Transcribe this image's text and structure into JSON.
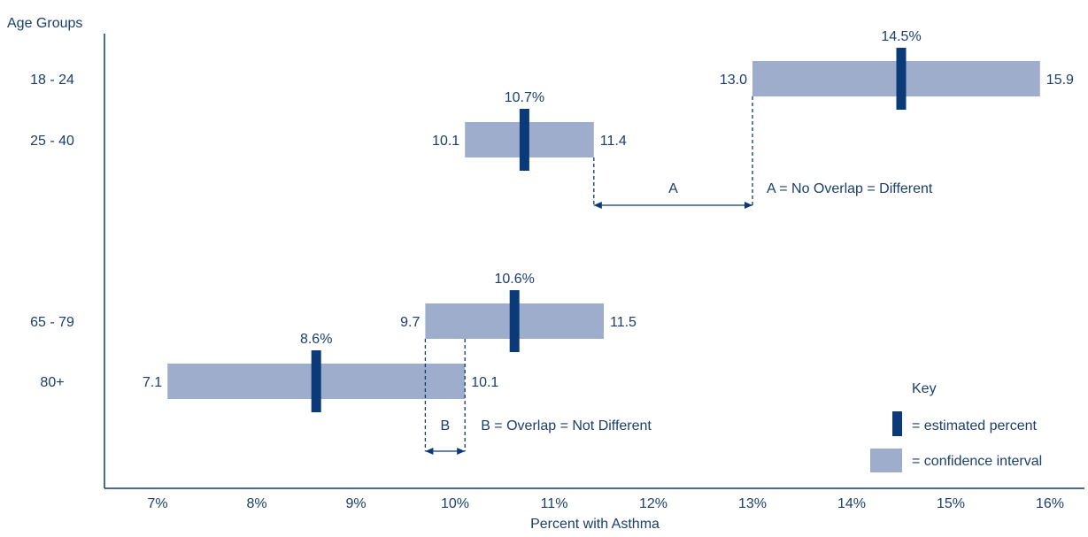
{
  "chart_data": {
    "type": "bar",
    "subtype": "confidence-interval",
    "ylabel": "Age Groups",
    "xlabel": "Percent with Asthma",
    "xlim": [
      6.5,
      16.3
    ],
    "x_ticks": [
      7,
      8,
      9,
      10,
      11,
      12,
      13,
      14,
      15,
      16
    ],
    "x_tick_labels": [
      "7%",
      "8%",
      "9%",
      "10%",
      "11%",
      "12%",
      "13%",
      "14%",
      "15%",
      "16%"
    ],
    "groups": [
      {
        "label": "18 - 24",
        "estimate": 14.5,
        "estimate_label": "14.5%",
        "lower": 13.0,
        "lower_label": "13.0",
        "upper": 15.9,
        "upper_label": "15.9"
      },
      {
        "label": "25 - 40",
        "estimate": 10.7,
        "estimate_label": "10.7%",
        "lower": 10.1,
        "lower_label": "10.1",
        "upper": 11.4,
        "upper_label": "11.4"
      },
      {
        "label": "65 - 79",
        "estimate": 10.6,
        "estimate_label": "10.6%",
        "lower": 9.7,
        "lower_label": "9.7",
        "upper": 11.5,
        "upper_label": "11.5"
      },
      {
        "label": "80+",
        "estimate": 8.6,
        "estimate_label": "8.6%",
        "lower": 7.1,
        "lower_label": "7.1",
        "upper": 10.1,
        "upper_label": "10.1"
      }
    ],
    "annotations": [
      {
        "marker": "A",
        "text": "A = No Overlap = Different",
        "from": 11.4,
        "to": 13.0
      },
      {
        "marker": "B",
        "text": "B = Overlap = Not Different",
        "from": 9.7,
        "to": 10.1
      }
    ],
    "key": {
      "title": "Key",
      "estimate_label": "= estimated percent",
      "interval_label": "= confidence interval"
    },
    "colors": {
      "estimate": "#0b3a78",
      "interval": "#9fadcd",
      "text": "#1a3e6e",
      "axis": "#0b3a78"
    }
  }
}
